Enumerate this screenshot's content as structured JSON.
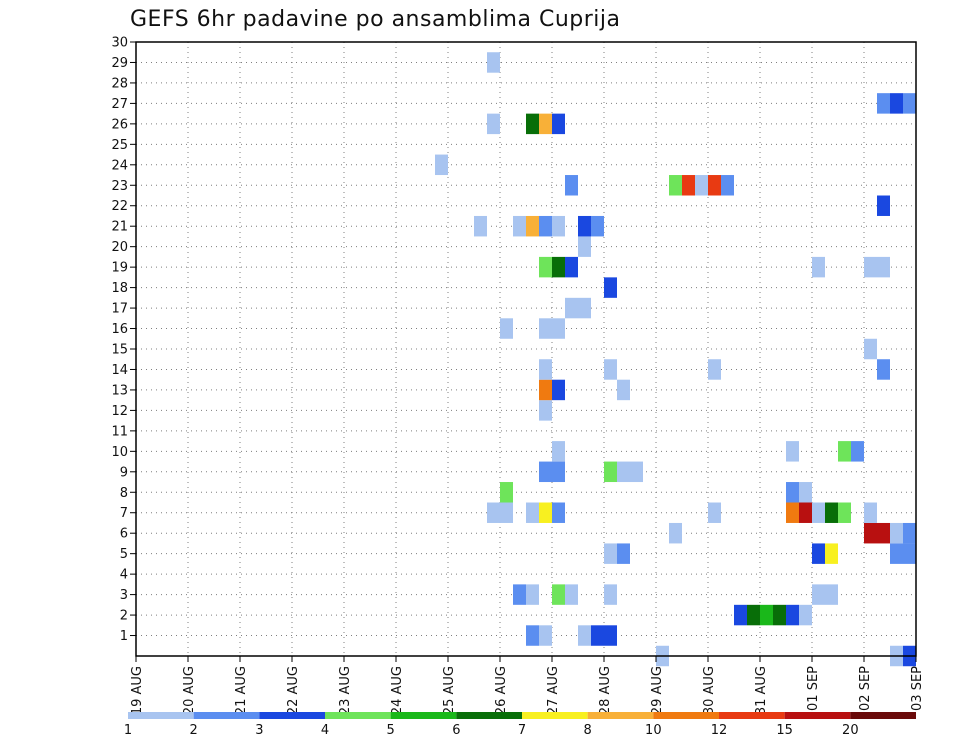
{
  "chart_data": {
    "type": "heatmap",
    "title": "GEFS 6hr padavine po ansamblima Cuprija",
    "x_tick_labels": [
      "19 AUG",
      "20 AUG",
      "21 AUG",
      "22 AUG",
      "23 AUG",
      "24 AUG",
      "25 AUG",
      "26 AUG",
      "27 AUG",
      "28 AUG",
      "29 AUG",
      "30 AUG",
      "31 AUG",
      "01 SEP",
      "02 SEP",
      "03 SEP"
    ],
    "y_tick_labels": [
      "1",
      "2",
      "3",
      "4",
      "5",
      "6",
      "7",
      "8",
      "9",
      "10",
      "11",
      "12",
      "13",
      "14",
      "15",
      "16",
      "17",
      "18",
      "19",
      "20",
      "21",
      "22",
      "23",
      "24",
      "25",
      "26",
      "27",
      "28",
      "29",
      "30"
    ],
    "ylim": [
      0,
      30
    ],
    "x_steps_per_day": 4,
    "grid": "dotted",
    "legend": {
      "placement": "bottom",
      "thresholds": [
        "1",
        "2",
        "3",
        "4",
        "5",
        "6",
        "7",
        "8",
        "10",
        "12",
        "15",
        "20"
      ],
      "colors": [
        "#a8c4f0",
        "#5b8ef0",
        "#1a48e0",
        "#6ee45a",
        "#1ab81a",
        "#086e08",
        "#f8f020",
        "#f8b038",
        "#f07a10",
        "#e83a12",
        "#b81010",
        "#6a0a0a"
      ]
    },
    "cells": [
      [
        0,
        14.75,
        3
      ],
      [
        0,
        15.0,
        5
      ],
      [
        0,
        15.25,
        2
      ],
      [
        0,
        15.5,
        1
      ],
      [
        0,
        15.75,
        8
      ],
      [
        0,
        16.0,
        4
      ],
      [
        0,
        14.5,
        1
      ],
      [
        0,
        10.0,
        1
      ],
      [
        1,
        7.5,
        2
      ],
      [
        1,
        7.75,
        1
      ],
      [
        1,
        8.5,
        1
      ],
      [
        1,
        8.75,
        3
      ],
      [
        1,
        9.0,
        3
      ],
      [
        2,
        11.5,
        3
      ],
      [
        2,
        11.75,
        6
      ],
      [
        2,
        12.0,
        5
      ],
      [
        2,
        12.25,
        6
      ],
      [
        2,
        12.5,
        3
      ],
      [
        2,
        12.75,
        1
      ],
      [
        3,
        7.25,
        2
      ],
      [
        3,
        7.5,
        1
      ],
      [
        3,
        8.0,
        4
      ],
      [
        3,
        8.25,
        1
      ],
      [
        3,
        9.0,
        1
      ],
      [
        3,
        13.0,
        1
      ],
      [
        3,
        13.25,
        1
      ],
      [
        5,
        9.0,
        1
      ],
      [
        5,
        9.25,
        2
      ],
      [
        5,
        13.0,
        3
      ],
      [
        5,
        13.25,
        7
      ],
      [
        5,
        14.5,
        2
      ],
      [
        5,
        14.75,
        2
      ],
      [
        5,
        15.0,
        1
      ],
      [
        6,
        10.25,
        1
      ],
      [
        6,
        14.0,
        11
      ],
      [
        6,
        14.25,
        11
      ],
      [
        6,
        14.5,
        1
      ],
      [
        6,
        14.75,
        2
      ],
      [
        6,
        15.0,
        2
      ],
      [
        7,
        6.75,
        1
      ],
      [
        7,
        7.0,
        1
      ],
      [
        7,
        7.5,
        1
      ],
      [
        7,
        7.75,
        7
      ],
      [
        7,
        8.0,
        2
      ],
      [
        7,
        11.0,
        1
      ],
      [
        7,
        12.5,
        9
      ],
      [
        7,
        12.75,
        11
      ],
      [
        7,
        13.0,
        1
      ],
      [
        7,
        13.25,
        6
      ],
      [
        7,
        13.5,
        4
      ],
      [
        7,
        14.0,
        1
      ],
      [
        7,
        16.0,
        7
      ],
      [
        8,
        7.0,
        4
      ],
      [
        8,
        12.5,
        2
      ],
      [
        8,
        12.75,
        1
      ],
      [
        9,
        7.75,
        2
      ],
      [
        9,
        8.0,
        2
      ],
      [
        9,
        9.0,
        4
      ],
      [
        9,
        9.25,
        1
      ],
      [
        9,
        9.5,
        1
      ],
      [
        10,
        8.0,
        1
      ],
      [
        10,
        12.5,
        1
      ],
      [
        10,
        13.5,
        4
      ],
      [
        10,
        13.75,
        2
      ],
      [
        12,
        7.75,
        1
      ],
      [
        13,
        7.75,
        9
      ],
      [
        13,
        8.0,
        3
      ],
      [
        13,
        9.25,
        1
      ],
      [
        14,
        7.75,
        1
      ],
      [
        14,
        9.0,
        1
      ],
      [
        14,
        11.0,
        1
      ],
      [
        14,
        14.25,
        2
      ],
      [
        15,
        14.0,
        1
      ],
      [
        16,
        7.0,
        1
      ],
      [
        16,
        7.75,
        1
      ],
      [
        16,
        8.0,
        1
      ],
      [
        16,
        15.25,
        2
      ],
      [
        17,
        8.25,
        1
      ],
      [
        17,
        8.5,
        1
      ],
      [
        18,
        9.0,
        3
      ],
      [
        19,
        7.75,
        4
      ],
      [
        19,
        8.0,
        6
      ],
      [
        19,
        8.25,
        3
      ],
      [
        19,
        13.0,
        1
      ],
      [
        19,
        14.0,
        1
      ],
      [
        19,
        14.25,
        1
      ],
      [
        20,
        8.5,
        1
      ],
      [
        20,
        15.5,
        2
      ],
      [
        21,
        6.5,
        1
      ],
      [
        21,
        7.25,
        1
      ],
      [
        21,
        7.5,
        8
      ],
      [
        21,
        7.75,
        2
      ],
      [
        21,
        8.0,
        1
      ],
      [
        21,
        8.5,
        3
      ],
      [
        21,
        8.75,
        2
      ],
      [
        22,
        14.25,
        3
      ],
      [
        23,
        8.25,
        2
      ],
      [
        23,
        10.25,
        4
      ],
      [
        23,
        10.5,
        10
      ],
      [
        23,
        10.75,
        1
      ],
      [
        23,
        11.0,
        10
      ],
      [
        23,
        11.25,
        2
      ],
      [
        24,
        5.75,
        1
      ],
      [
        26,
        6.75,
        1
      ],
      [
        26,
        7.5,
        6
      ],
      [
        26,
        7.75,
        8
      ],
      [
        26,
        8.0,
        3
      ],
      [
        27,
        14.25,
        2
      ],
      [
        27,
        14.5,
        3
      ],
      [
        27,
        14.75,
        2
      ],
      [
        27,
        15.0,
        1
      ],
      [
        27,
        15.25,
        3
      ],
      [
        27,
        15.5,
        2
      ],
      [
        29,
        6.75,
        1
      ]
    ]
  }
}
